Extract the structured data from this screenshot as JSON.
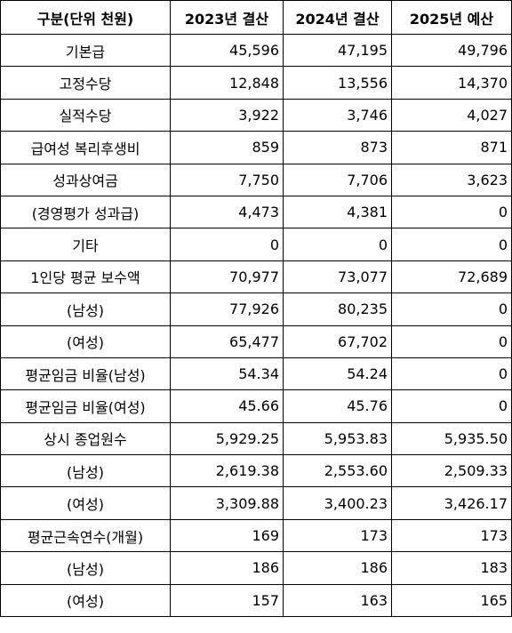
{
  "table": {
    "headers": [
      "구분(단위 천원)",
      "2023년 결산",
      "2024년 결산",
      "2025년 예산"
    ],
    "rows": [
      [
        "기본급",
        "45,596",
        "47,195",
        "49,796"
      ],
      [
        "고정수당",
        "12,848",
        "13,556",
        "14,370"
      ],
      [
        "실적수당",
        "3,922",
        "3,746",
        "4,027"
      ],
      [
        "급여성 복리후생비",
        "859",
        "873",
        "871"
      ],
      [
        "성과상여금",
        "7,750",
        "7,706",
        "3,623"
      ],
      [
        "(경영평가 성과급)",
        "4,473",
        "4,381",
        "0"
      ],
      [
        "기타",
        "0",
        "0",
        "0"
      ],
      [
        "1인당 평균 보수액",
        "70,977",
        "73,077",
        "72,689"
      ],
      [
        "(남성)",
        "77,926",
        "80,235",
        "0"
      ],
      [
        "(여성)",
        "65,477",
        "67,702",
        "0"
      ],
      [
        "평균임금 비율(남성)",
        "54.34",
        "54.24",
        "0"
      ],
      [
        "평균임금 비율(여성)",
        "45.66",
        "45.76",
        "0"
      ],
      [
        "상시 종업원수",
        "5,929.25",
        "5,953.83",
        "5,935.50"
      ],
      [
        "(남성)",
        "2,619.38",
        "2,553.60",
        "2,509.33"
      ],
      [
        "(여성)",
        "3,309.88",
        "3,400.23",
        "3,426.17"
      ],
      [
        "평균근속연수(개월)",
        "169",
        "173",
        "173"
      ],
      [
        "(남성)",
        "186",
        "186",
        "183"
      ],
      [
        "(여성)",
        "157",
        "163",
        "165"
      ]
    ]
  }
}
